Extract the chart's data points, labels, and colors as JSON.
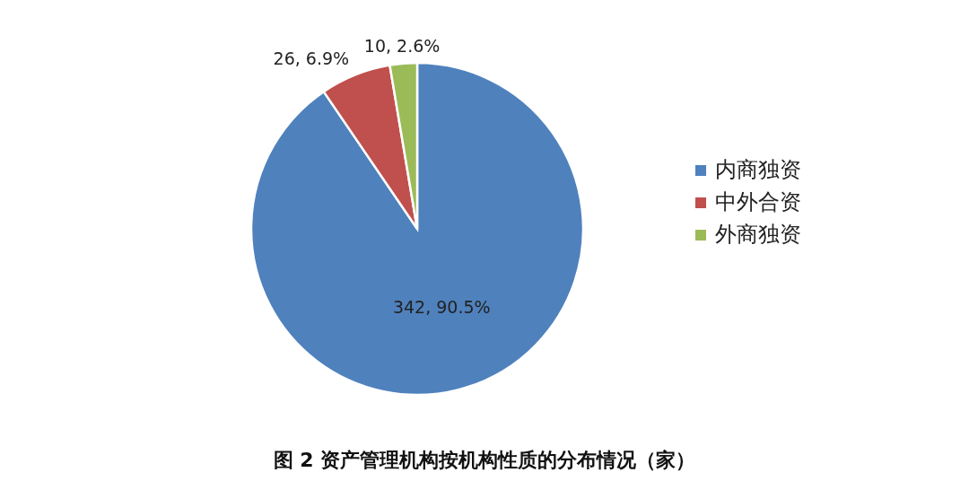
{
  "chart_data": {
    "type": "pie",
    "title": "图 2 资产管理机构按机构性质的分布情况（家）",
    "categories": [
      "内商独资",
      "中外合资",
      "外商独资"
    ],
    "values": [
      342,
      26,
      10
    ],
    "colors": [
      "#4f81bd",
      "#c0504d",
      "#9bbb59"
    ],
    "value_labels": [
      "342, 90.5%",
      "26, 6.9%",
      "10, 2.6%"
    ],
    "legend": "right"
  }
}
